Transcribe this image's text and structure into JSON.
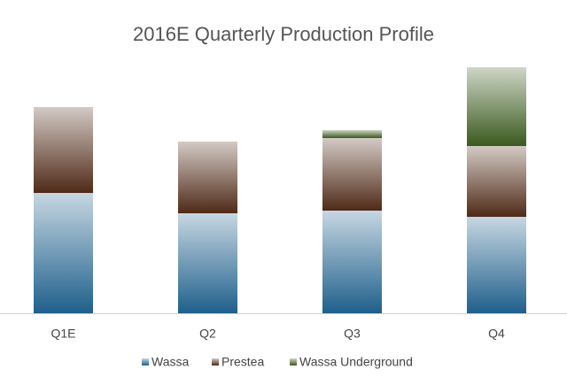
{
  "chart_data": {
    "type": "stacked-bar",
    "title": "2016E Quarterly Production Profile",
    "categories": [
      "Q1E",
      "Q2",
      "Q3",
      "Q4"
    ],
    "series": [
      {
        "name": "Wassa",
        "color": "#1f5f8b",
        "values": [
          136,
          113,
          116,
          109
        ]
      },
      {
        "name": "Prestea",
        "color": "#4f2a17",
        "values": [
          97,
          81,
          82,
          80
        ]
      },
      {
        "name": "Wassa Underground",
        "color": "#3b5a1e",
        "values": [
          0,
          0,
          9,
          89
        ]
      }
    ],
    "ylim": [
      0,
      280
    ]
  }
}
